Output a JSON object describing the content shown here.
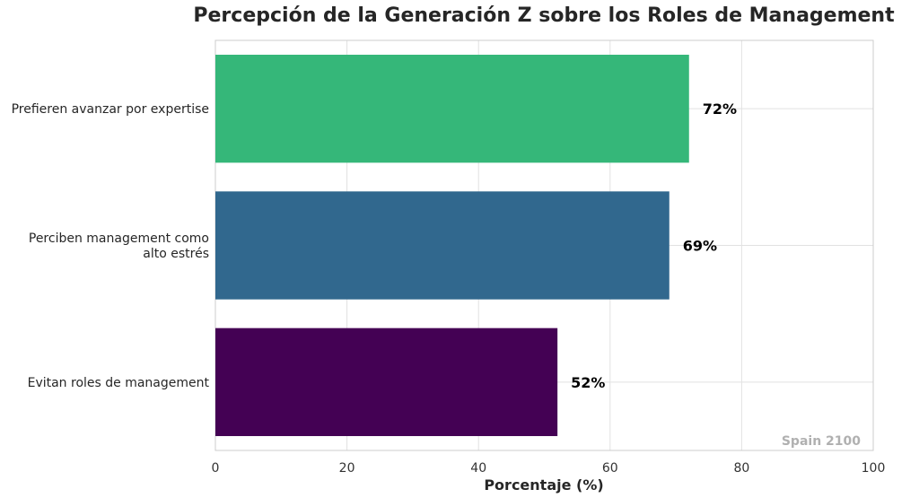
{
  "chart_data": {
    "type": "bar",
    "orientation": "horizontal",
    "title": "Percepción de la Generación Z sobre los Roles de Management",
    "xlabel": "Porcentaje (%)",
    "ylabel": "",
    "xlim": [
      0,
      100
    ],
    "x_ticks": [
      "0",
      "20",
      "40",
      "60",
      "80",
      "100"
    ],
    "grid": true,
    "categories": [
      [
        "Prefieren avanzar por expertise"
      ],
      [
        "Perciben management como",
        "alto estrés"
      ],
      [
        "Evitan roles de management"
      ]
    ],
    "values": [
      72,
      69,
      52
    ],
    "data_labels": [
      "72%",
      "69%",
      "52%"
    ],
    "colors": [
      "#35b779",
      "#31688e",
      "#440154"
    ],
    "watermark": "Spain 2100"
  }
}
